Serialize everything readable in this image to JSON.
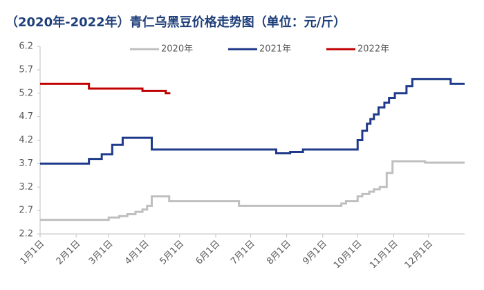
{
  "chart_data": {
    "type": "line",
    "title": "（2020年-2022年）青仁乌黑豆价格走势图（单位：元/斤）",
    "xlim": [
      0,
      365
    ],
    "xticks": [
      {
        "value": 0,
        "label": "1月1日"
      },
      {
        "value": 31,
        "label": "2月1日"
      },
      {
        "value": 59,
        "label": "3月1日"
      },
      {
        "value": 90,
        "label": "4月1日"
      },
      {
        "value": 120,
        "label": "5月1日"
      },
      {
        "value": 151,
        "label": "6月1日"
      },
      {
        "value": 181,
        "label": "7月1日"
      },
      {
        "value": 212,
        "label": "8月1日"
      },
      {
        "value": 243,
        "label": "9月1日"
      },
      {
        "value": 273,
        "label": "10月1日"
      },
      {
        "value": 304,
        "label": "11月1日"
      },
      {
        "value": 334,
        "label": "12月1日"
      }
    ],
    "ylim": [
      2.2,
      6.2
    ],
    "yticks": [
      2.2,
      2.7,
      3.2,
      3.7,
      4.2,
      4.7,
      5.2,
      5.7,
      6.2
    ],
    "grid": false,
    "legend": "top",
    "series": [
      {
        "name": "2020年",
        "color": "#bfbfbf",
        "x": [
          0,
          59,
          59,
          68,
          68,
          75,
          75,
          82,
          82,
          88,
          88,
          92,
          92,
          96,
          96,
          111,
          111,
          171,
          171,
          259,
          259,
          263,
          263,
          273,
          273,
          277,
          277,
          283,
          283,
          287,
          287,
          292,
          292,
          298,
          298,
          303,
          303,
          331,
          331,
          365
        ],
        "values": [
          2.5,
          2.5,
          2.55,
          2.55,
          2.58,
          2.58,
          2.62,
          2.62,
          2.67,
          2.67,
          2.72,
          2.72,
          2.8,
          2.8,
          3.0,
          3.0,
          2.9,
          2.9,
          2.8,
          2.8,
          2.85,
          2.85,
          2.9,
          2.9,
          3.0,
          3.0,
          3.05,
          3.05,
          3.1,
          3.1,
          3.15,
          3.15,
          3.2,
          3.2,
          3.5,
          3.5,
          3.75,
          3.75,
          3.72,
          3.72
        ]
      },
      {
        "name": "2021年",
        "color": "#1f3a8a",
        "x": [
          0,
          42,
          42,
          53,
          53,
          62,
          62,
          71,
          71,
          96,
          96,
          203,
          203,
          215,
          215,
          226,
          226,
          273,
          273,
          277,
          277,
          281,
          281,
          284,
          284,
          287,
          287,
          291,
          291,
          296,
          296,
          300,
          300,
          305,
          305,
          315,
          315,
          320,
          320,
          353,
          353,
          365
        ],
        "values": [
          3.7,
          3.7,
          3.8,
          3.8,
          3.9,
          3.9,
          4.1,
          4.1,
          4.25,
          4.25,
          4.0,
          4.0,
          3.92,
          3.92,
          3.95,
          3.95,
          4.0,
          4.0,
          4.2,
          4.2,
          4.4,
          4.4,
          4.55,
          4.55,
          4.65,
          4.65,
          4.75,
          4.75,
          4.9,
          4.9,
          5.0,
          5.0,
          5.1,
          5.1,
          5.2,
          5.2,
          5.35,
          5.35,
          5.5,
          5.5,
          5.4,
          5.4
        ]
      },
      {
        "name": "2022年",
        "color": "#c00000",
        "x": [
          0,
          42,
          42,
          88,
          88,
          108,
          108,
          112
        ],
        "values": [
          5.4,
          5.4,
          5.3,
          5.3,
          5.25,
          5.25,
          5.2,
          5.2
        ]
      }
    ]
  }
}
